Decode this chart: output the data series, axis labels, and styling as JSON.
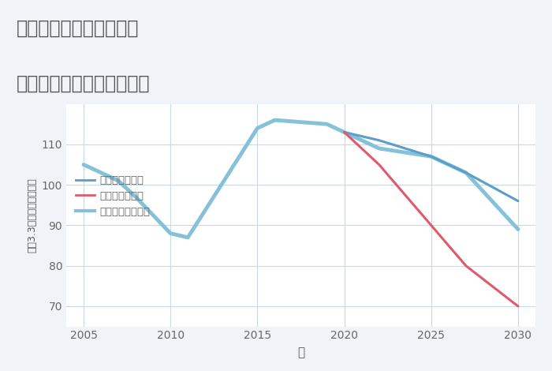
{
  "title_line1": "大阪府大阪市西成区旭の",
  "title_line2": "中古マンションの価格推移",
  "xlabel": "年",
  "ylabel": "坪（3.3㎡）単価（万円）",
  "background_color": "#f0f4f8",
  "plot_bg_color": "#ffffff",
  "grid_color": "#c8dae8",
  "title_color": "#555555",
  "xlabel_color": "#555555",
  "ylabel_color": "#555555",
  "tick_color": "#666666",
  "ylim": [
    65,
    120
  ],
  "xlim": [
    2004,
    2031
  ],
  "yticks": [
    70,
    80,
    90,
    100,
    110
  ],
  "xticks": [
    2005,
    2010,
    2015,
    2020,
    2025,
    2030
  ],
  "series": {
    "normal": {
      "label": "ノーマルシナリオ",
      "color": "#85c1d8",
      "linewidth": 3.5,
      "x": [
        2005,
        2007,
        2008,
        2010,
        2011,
        2015,
        2016,
        2019,
        2020,
        2022,
        2025,
        2027,
        2030
      ],
      "y": [
        105,
        101,
        97,
        88,
        87,
        114,
        116,
        115,
        113,
        109,
        107,
        103,
        89
      ]
    },
    "good": {
      "label": "グッドシナリオ",
      "color": "#5b9ec9",
      "linewidth": 2.2,
      "x": [
        2020,
        2022,
        2025,
        2027,
        2030
      ],
      "y": [
        113,
        111,
        107,
        103,
        96
      ]
    },
    "bad": {
      "label": "バッドシナリオ",
      "color": "#e05a6b",
      "linewidth": 2.2,
      "x": [
        2020,
        2022,
        2025,
        2027,
        2030
      ],
      "y": [
        113,
        105,
        90,
        80,
        70
      ]
    }
  },
  "legend_good_label": "グッドシナリオ",
  "legend_bad_label": "バッドシナリオ",
  "legend_normal_label": "ノーマルシナリオ"
}
